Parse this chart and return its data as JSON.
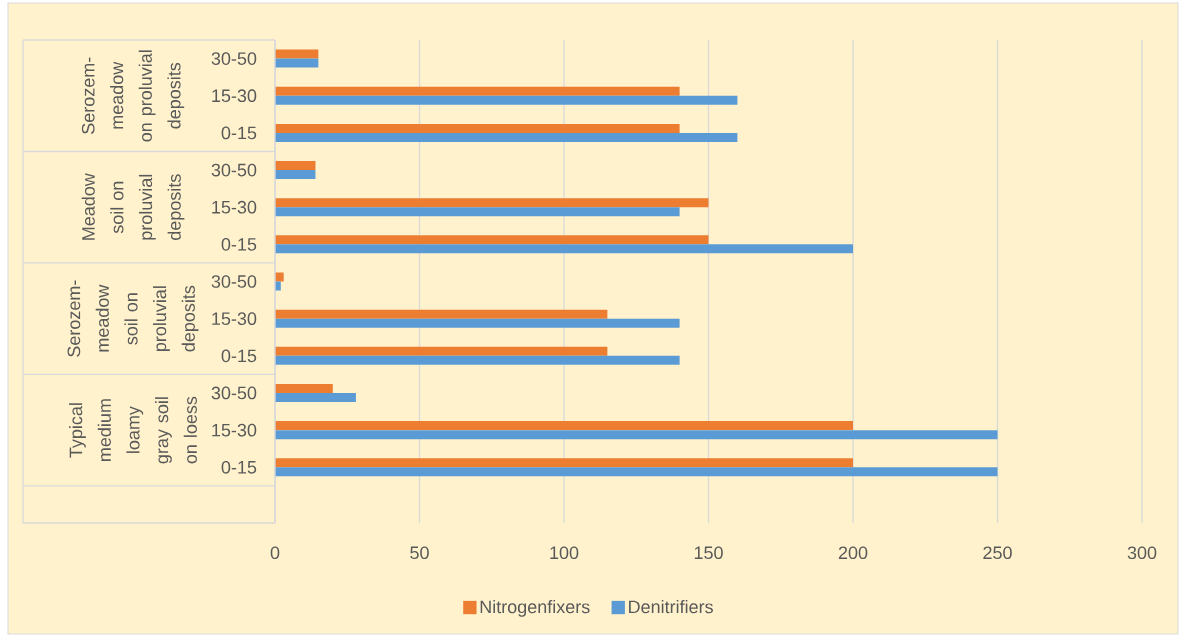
{
  "chart_data": {
    "type": "bar",
    "orientation": "horizontal",
    "categories": [
      "30-50",
      "15-30",
      "0-15",
      "30-50",
      "15-30",
      "0-15",
      "30-50",
      "15-30",
      "0-15",
      "30-50",
      "15-30",
      "0-15",
      null
    ],
    "series": [
      {
        "name": "Nitrogenfixers",
        "color": "#ed7d31",
        "values": [
          15,
          140,
          140,
          14,
          150,
          150,
          3,
          115,
          115,
          20,
          200,
          200,
          null
        ]
      },
      {
        "name": "Denitrifiers",
        "color": "#5b9bd5",
        "values": [
          15,
          160,
          160,
          14,
          140,
          200,
          2,
          140,
          140,
          28,
          250,
          250,
          null
        ]
      }
    ],
    "xlim": [
      0,
      300
    ],
    "xticks": [
      0,
      50,
      100,
      150,
      200,
      250,
      300
    ],
    "grid": "x",
    "legend": "bottom",
    "annotations": [
      "Serozem-meadow on proluvial deposits",
      "Meadow soil on proluvial deposits",
      "Serozem-meadow soil on proluvial deposits",
      "Typical medium loamy gray soil on loess"
    ]
  }
}
